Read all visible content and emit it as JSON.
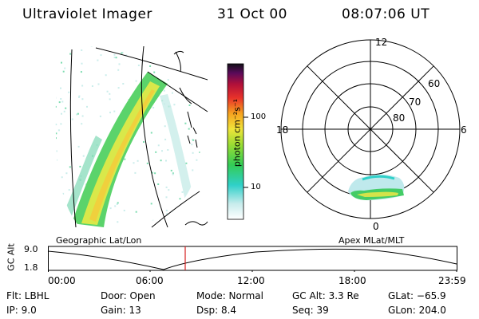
{
  "header": {
    "title": "Ultraviolet Imager",
    "date": "31 Oct 00",
    "time": "08:07:06 UT"
  },
  "colorbar": {
    "label": "photon cm⁻²s⁻¹",
    "tick_high": "100",
    "tick_low": "10"
  },
  "polar": {
    "mlt_top": "12",
    "mlt_left": "18",
    "mlt_right": "6",
    "mlt_bottom": "0",
    "lat_60": "60",
    "lat_70": "70",
    "lat_80": "80"
  },
  "panels": {
    "left_caption": "Geographic Lat/Lon",
    "right_caption": "Apex MLat/MLT"
  },
  "altitude_plot": {
    "ylabel": "GC Alt",
    "y_top": "9.0",
    "y_bottom": "1.8",
    "x_ticks": [
      "00:00",
      "06:00",
      "12:00",
      "18:00",
      "23:59"
    ],
    "marker_time": "08:07"
  },
  "status": {
    "flt": "Flt:  LBHL",
    "ip": "IP:  9.0",
    "door": "Door:  Open",
    "gain": "Gain:  13",
    "mode": "Mode:  Normal",
    "dsp": "Dsp:      8.4",
    "gcalt": "GC Alt:  3.3 Re",
    "seq": "Seq:  39",
    "glat": "GLat:  −65.9",
    "glon": "GLon:  204.0"
  }
}
